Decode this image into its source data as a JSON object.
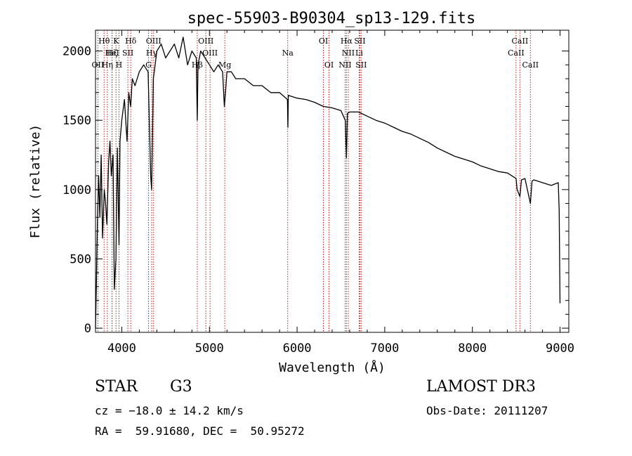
{
  "chart_data": {
    "type": "line",
    "title": "spec-55903-B90304_sp13-129.fits",
    "xlabel": "Wavelength (Å)",
    "ylabel": "Flux (relative)",
    "xlim": [
      3700,
      9100
    ],
    "ylim": [
      -30,
      2150
    ],
    "x_ticks": [
      4000,
      5000,
      6000,
      7000,
      8000,
      9000
    ],
    "y_ticks": [
      0,
      500,
      1000,
      1500,
      2000
    ],
    "grid": false,
    "legend": "none",
    "series": [
      {
        "name": "spectrum",
        "x": [
          3700,
          3710,
          3720,
          3735,
          3750,
          3765,
          3780,
          3800,
          3815,
          3830,
          3850,
          3865,
          3880,
          3900,
          3915,
          3933,
          3950,
          3968,
          3980,
          4000,
          4030,
          4060,
          4080,
          4101,
          4120,
          4150,
          4200,
          4250,
          4300,
          4330,
          4340,
          4360,
          4400,
          4450,
          4500,
          4550,
          4600,
          4650,
          4700,
          4750,
          4800,
          4850,
          4861,
          4870,
          4900,
          4950,
          5000,
          5050,
          5100,
          5150,
          5170,
          5183,
          5200,
          5250,
          5300,
          5400,
          5500,
          5600,
          5700,
          5800,
          5890,
          5895,
          5900,
          6000,
          6100,
          6200,
          6300,
          6400,
          6500,
          6550,
          6563,
          6575,
          6600,
          6700,
          6800,
          6900,
          7000,
          7100,
          7200,
          7300,
          7400,
          7500,
          7600,
          7700,
          7800,
          7900,
          8000,
          8100,
          8200,
          8300,
          8400,
          8498,
          8510,
          8542,
          8560,
          8600,
          8662,
          8680,
          8700,
          8800,
          8900,
          8980,
          8990,
          9000
        ],
        "y": [
          0,
          300,
          700,
          1100,
          800,
          1250,
          650,
          1000,
          900,
          750,
          1200,
          1350,
          1100,
          1250,
          280,
          500,
          1300,
          600,
          1350,
          1500,
          1650,
          1350,
          1700,
          1600,
          1800,
          1750,
          1850,
          1900,
          1850,
          1100,
          1000,
          1800,
          2000,
          2050,
          1950,
          2000,
          2050,
          1950,
          2100,
          1900,
          2000,
          1950,
          1500,
          1900,
          2000,
          1950,
          1900,
          1850,
          1900,
          1850,
          1600,
          1700,
          1850,
          1850,
          1800,
          1800,
          1750,
          1750,
          1700,
          1700,
          1650,
          1450,
          1680,
          1660,
          1650,
          1630,
          1600,
          1590,
          1570,
          1500,
          1230,
          1550,
          1560,
          1560,
          1530,
          1500,
          1480,
          1450,
          1420,
          1400,
          1370,
          1340,
          1300,
          1270,
          1240,
          1220,
          1200,
          1170,
          1150,
          1130,
          1120,
          1080,
          1000,
          950,
          1070,
          1080,
          900,
          1060,
          1070,
          1050,
          1030,
          1050,
          850,
          180
        ]
      }
    ],
    "spectral_lines": [
      {
        "label": "Hθ",
        "wavelength": 3798,
        "row": 1
      },
      {
        "label": "OII",
        "wavelength": 3727,
        "row": 3
      },
      {
        "label": "Hη",
        "wavelength": 3835,
        "row": 3
      },
      {
        "label": "HeI",
        "wavelength": 3889,
        "row": 2
      },
      {
        "label": "Hζ",
        "wavelength": 3889,
        "row": 2
      },
      {
        "label": "K",
        "wavelength": 3934,
        "row": 1
      },
      {
        "label": "H",
        "wavelength": 3968,
        "row": 3
      },
      {
        "label": "SII",
        "wavelength": 4069,
        "row": 2
      },
      {
        "label": "Hδ",
        "wavelength": 4102,
        "row": 1
      },
      {
        "label": "OIII",
        "wavelength": 4363,
        "row": 1
      },
      {
        "label": "Hγ",
        "wavelength": 4341,
        "row": 2
      },
      {
        "label": "G",
        "wavelength": 4305,
        "row": 3
      },
      {
        "label": "OIII",
        "wavelength": 4959,
        "row": 1
      },
      {
        "label": "OIII",
        "wavelength": 5007,
        "row": 2
      },
      {
        "label": "Hβ",
        "wavelength": 4861,
        "row": 3
      },
      {
        "label": "Mg",
        "wavelength": 5175,
        "row": 3
      },
      {
        "label": "Na",
        "wavelength": 5893,
        "row": 2
      },
      {
        "label": "OI",
        "wavelength": 6300,
        "row": 1
      },
      {
        "label": "OI",
        "wavelength": 6364,
        "row": 3
      },
      {
        "label": "Hα",
        "wavelength": 6563,
        "row": 1
      },
      {
        "label": "SII",
        "wavelength": 6716,
        "row": 1
      },
      {
        "label": "NII",
        "wavelength": 6584,
        "row": 2
      },
      {
        "label": "Li",
        "wavelength": 6708,
        "row": 2
      },
      {
        "label": "NII",
        "wavelength": 6548,
        "row": 3
      },
      {
        "label": "SII",
        "wavelength": 6731,
        "row": 3
      },
      {
        "label": "CaII",
        "wavelength": 8542,
        "row": 1
      },
      {
        "label": "CaII",
        "wavelength": 8498,
        "row": 2
      },
      {
        "label": "CaII",
        "wavelength": 8662,
        "row": 3
      }
    ]
  },
  "info": {
    "object_class": "STAR",
    "subclass": "G3",
    "survey": "LAMOST DR3",
    "cz": "cz = −18.0 ± 14.2 km/s",
    "obs_date": "Obs-Date: 20111207",
    "coords": "RA =  59.91680, DEC =  50.95272"
  },
  "colors": {
    "axis": "#000000",
    "line": "#000000",
    "marker_lines": "#b22222"
  }
}
